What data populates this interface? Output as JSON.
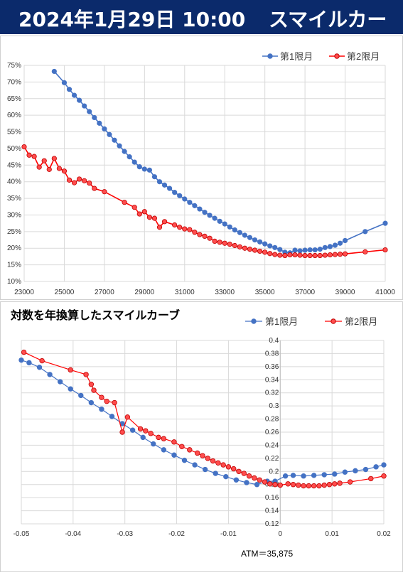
{
  "header": {
    "date": "2024年1月29日 10:00",
    "title": "スマイルカーブ"
  },
  "colors": {
    "header_bg": "#0b2a6b",
    "series1": "#4472c4",
    "series2": "#ff0000",
    "series2_fill": "#ff4d4d",
    "grid": "#d9d9d9"
  },
  "chart_data": [
    {
      "type": "line",
      "title": "",
      "legend_position": "top-right",
      "grid": true,
      "xlim": [
        23000,
        41000
      ],
      "ylim": [
        10,
        75
      ],
      "x_ticks": [
        "23000",
        "25000",
        "27000",
        "29000",
        "31000",
        "33000",
        "35000",
        "37000",
        "39000",
        "41000"
      ],
      "y_ticks": [
        "10%",
        "15%",
        "20%",
        "25%",
        "30%",
        "35%",
        "40%",
        "45%",
        "50%",
        "55%",
        "60%",
        "65%",
        "70%",
        "75%"
      ],
      "series": [
        {
          "name": "第1限月",
          "points": [
            [
              24500,
              73.2
            ],
            [
              25000,
              69.8
            ],
            [
              25250,
              67.8
            ],
            [
              25500,
              66.0
            ],
            [
              25750,
              64.5
            ],
            [
              26000,
              62.8
            ],
            [
              26250,
              61.1
            ],
            [
              26500,
              59.3
            ],
            [
              26750,
              57.6
            ],
            [
              27000,
              55.9
            ],
            [
              27250,
              54.2
            ],
            [
              27500,
              52.5
            ],
            [
              27750,
              50.8
            ],
            [
              28000,
              49.1
            ],
            [
              28250,
              47.5
            ],
            [
              28500,
              45.9
            ],
            [
              28750,
              44.5
            ],
            [
              29000,
              43.8
            ],
            [
              29250,
              43.5
            ],
            [
              29500,
              41.5
            ],
            [
              29750,
              40.0
            ],
            [
              30000,
              39.0
            ],
            [
              30250,
              38.0
            ],
            [
              30500,
              36.8
            ],
            [
              30750,
              35.8
            ],
            [
              31000,
              34.8
            ],
            [
              31250,
              33.8
            ],
            [
              31500,
              32.8
            ],
            [
              31750,
              31.8
            ],
            [
              32000,
              30.8
            ],
            [
              32250,
              29.9
            ],
            [
              32500,
              29.0
            ],
            [
              32750,
              28.1
            ],
            [
              33000,
              27.3
            ],
            [
              33250,
              26.4
            ],
            [
              33500,
              25.5
            ],
            [
              33750,
              24.7
            ],
            [
              34000,
              23.9
            ],
            [
              34250,
              23.2
            ],
            [
              34500,
              22.5
            ],
            [
              34750,
              21.9
            ],
            [
              35000,
              21.3
            ],
            [
              35250,
              20.7
            ],
            [
              35500,
              20.2
            ],
            [
              35750,
              19.6
            ],
            [
              36000,
              18.8
            ],
            [
              36250,
              18.6
            ],
            [
              36500,
              19.4
            ],
            [
              36750,
              19.2
            ],
            [
              37000,
              19.4
            ],
            [
              37250,
              19.5
            ],
            [
              37500,
              19.5
            ],
            [
              37750,
              19.7
            ],
            [
              38000,
              20.2
            ],
            [
              38250,
              20.5
            ],
            [
              38500,
              20.9
            ],
            [
              38750,
              21.5
            ],
            [
              39000,
              22.3
            ],
            [
              40000,
              25.0
            ],
            [
              41000,
              27.5
            ]
          ]
        },
        {
          "name": "第2限月",
          "points": [
            [
              23000,
              50.5
            ],
            [
              23250,
              48.0
            ],
            [
              23500,
              47.6
            ],
            [
              23750,
              44.4
            ],
            [
              24000,
              46.3
            ],
            [
              24250,
              43.7
            ],
            [
              24500,
              47.0
            ],
            [
              24750,
              44.0
            ],
            [
              25000,
              43.2
            ],
            [
              25250,
              40.5
            ],
            [
              25500,
              39.7
            ],
            [
              25750,
              40.8
            ],
            [
              26000,
              40.3
            ],
            [
              26250,
              39.6
            ],
            [
              26500,
              38.0
            ],
            [
              27000,
              37.0
            ],
            [
              28000,
              33.8
            ],
            [
              28500,
              32.3
            ],
            [
              28750,
              30.3
            ],
            [
              29000,
              31.0
            ],
            [
              29250,
              29.3
            ],
            [
              29500,
              29.0
            ],
            [
              29750,
              26.3
            ],
            [
              30000,
              28.0
            ],
            [
              30500,
              27.0
            ],
            [
              30750,
              26.3
            ],
            [
              31000,
              25.8
            ],
            [
              31250,
              25.6
            ],
            [
              31500,
              24.8
            ],
            [
              31750,
              24.1
            ],
            [
              32000,
              23.6
            ],
            [
              32250,
              23.0
            ],
            [
              32500,
              22.1
            ],
            [
              32750,
              21.8
            ],
            [
              33000,
              21.5
            ],
            [
              33250,
              21.2
            ],
            [
              33500,
              20.8
            ],
            [
              33750,
              20.4
            ],
            [
              34000,
              20.0
            ],
            [
              34250,
              19.7
            ],
            [
              34500,
              19.4
            ],
            [
              34750,
              19.1
            ],
            [
              35000,
              18.8
            ],
            [
              35250,
              18.4
            ],
            [
              35500,
              18.1
            ],
            [
              35750,
              17.9
            ],
            [
              36000,
              17.8
            ],
            [
              36250,
              18.0
            ],
            [
              36500,
              18.0
            ],
            [
              36750,
              17.9
            ],
            [
              37000,
              17.8
            ],
            [
              37250,
              17.8
            ],
            [
              37500,
              17.8
            ],
            [
              37750,
              17.8
            ],
            [
              38000,
              17.9
            ],
            [
              38250,
              18.0
            ],
            [
              38500,
              18.1
            ],
            [
              38750,
              18.2
            ],
            [
              39000,
              18.3
            ],
            [
              40000,
              18.9
            ],
            [
              41000,
              19.5
            ]
          ]
        }
      ]
    },
    {
      "type": "line",
      "title": "対数を年換算したスマイルカーブ",
      "legend_position": "top-right",
      "grid": true,
      "xlim": [
        -0.05,
        0.02
      ],
      "ylim": [
        0.12,
        0.4
      ],
      "x_ticks": [
        "-0.05",
        "-0.04",
        "-0.03",
        "-0.02",
        "-0.01",
        "0",
        "0.01",
        "0.02"
      ],
      "y_ticks": [
        "0.12",
        "0.14",
        "0.16",
        "0.18",
        "0.2",
        "0.22",
        "0.24",
        "0.26",
        "0.28",
        "0.3",
        "0.32",
        "0.34",
        "0.36",
        "0.38",
        "0.4"
      ],
      "annotation": "ATM＝35,875",
      "series": [
        {
          "name": "第1限月",
          "points": [
            [
              -0.05,
              0.37
            ],
            [
              -0.0485,
              0.366
            ],
            [
              -0.0465,
              0.359
            ],
            [
              -0.0445,
              0.348
            ],
            [
              -0.0425,
              0.337
            ],
            [
              -0.0405,
              0.326
            ],
            [
              -0.0385,
              0.316
            ],
            [
              -0.0365,
              0.305
            ],
            [
              -0.0345,
              0.295
            ],
            [
              -0.0325,
              0.284
            ],
            [
              -0.0305,
              0.273
            ],
            [
              -0.0285,
              0.263
            ],
            [
              -0.0265,
              0.252
            ],
            [
              -0.0245,
              0.242
            ],
            [
              -0.0225,
              0.233
            ],
            [
              -0.0205,
              0.225
            ],
            [
              -0.0185,
              0.217
            ],
            [
              -0.0165,
              0.21
            ],
            [
              -0.0145,
              0.203
            ],
            [
              -0.0125,
              0.197
            ],
            [
              -0.0105,
              0.192
            ],
            [
              -0.0085,
              0.187
            ],
            [
              -0.0065,
              0.183
            ],
            [
              -0.0045,
              0.18
            ],
            [
              -0.0025,
              0.185
            ],
            [
              -0.001,
              0.185
            ],
            [
              0.001,
              0.193
            ],
            [
              0.0025,
              0.194
            ],
            [
              0.0045,
              0.193
            ],
            [
              0.0065,
              0.194
            ],
            [
              0.0085,
              0.195
            ],
            [
              0.0105,
              0.196
            ],
            [
              0.0125,
              0.199
            ],
            [
              0.0145,
              0.201
            ],
            [
              0.0165,
              0.203
            ],
            [
              0.0185,
              0.207
            ],
            [
              0.02,
              0.21
            ]
          ]
        },
        {
          "name": "第2限月",
          "points": [
            [
              -0.0495,
              0.382
            ],
            [
              -0.046,
              0.369
            ],
            [
              -0.0405,
              0.355
            ],
            [
              -0.0375,
              0.348
            ],
            [
              -0.0365,
              0.333
            ],
            [
              -0.036,
              0.324
            ],
            [
              -0.0345,
              0.313
            ],
            [
              -0.0335,
              0.307
            ],
            [
              -0.032,
              0.305
            ],
            [
              -0.0305,
              0.26
            ],
            [
              -0.0295,
              0.283
            ],
            [
              -0.027,
              0.265
            ],
            [
              -0.026,
              0.262
            ],
            [
              -0.025,
              0.258
            ],
            [
              -0.0235,
              0.252
            ],
            [
              -0.0225,
              0.25
            ],
            [
              -0.0205,
              0.245
            ],
            [
              -0.019,
              0.238
            ],
            [
              -0.0175,
              0.233
            ],
            [
              -0.016,
              0.228
            ],
            [
              -0.015,
              0.224
            ],
            [
              -0.014,
              0.22
            ],
            [
              -0.013,
              0.216
            ],
            [
              -0.012,
              0.213
            ],
            [
              -0.011,
              0.21
            ],
            [
              -0.01,
              0.207
            ],
            [
              -0.009,
              0.204
            ],
            [
              -0.008,
              0.2
            ],
            [
              -0.007,
              0.197
            ],
            [
              -0.006,
              0.193
            ],
            [
              -0.005,
              0.19
            ],
            [
              -0.004,
              0.187
            ],
            [
              -0.003,
              0.184
            ],
            [
              -0.002,
              0.181
            ],
            [
              -0.001,
              0.18
            ],
            [
              0.0,
              0.179
            ],
            [
              0.0015,
              0.181
            ],
            [
              0.0025,
              0.18
            ],
            [
              0.0035,
              0.179
            ],
            [
              0.0045,
              0.178
            ],
            [
              0.0055,
              0.178
            ],
            [
              0.0065,
              0.178
            ],
            [
              0.0075,
              0.178
            ],
            [
              0.0085,
              0.179
            ],
            [
              0.0095,
              0.18
            ],
            [
              0.0105,
              0.181
            ],
            [
              0.0115,
              0.182
            ],
            [
              0.0135,
              0.184
            ],
            [
              0.0175,
              0.189
            ],
            [
              0.02,
              0.193
            ]
          ]
        }
      ]
    }
  ]
}
